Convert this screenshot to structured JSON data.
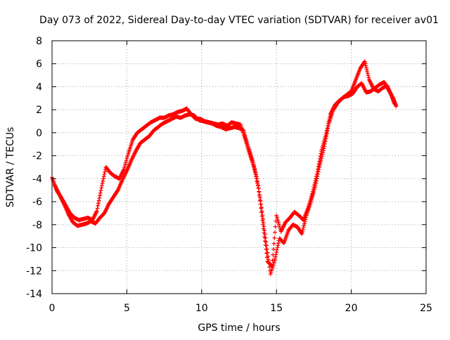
{
  "chart_data": {
    "type": "scatter",
    "title": "Day 073 of 2022, Sidereal Day-to-day VTEC variation (SDTVAR) for receiver av01",
    "xlabel": "GPS time / hours",
    "ylabel": "SDTVAR / TECUs",
    "xlim": [
      0,
      25
    ],
    "ylim": [
      -14,
      8
    ],
    "xticks": [
      "0",
      "5",
      "10",
      "15",
      "20",
      "25"
    ],
    "yticks": [
      "-14",
      "-12",
      "-10",
      "-8",
      "-6",
      "-4",
      "-2",
      "0",
      "2",
      "4",
      "6",
      "8"
    ],
    "grid": true,
    "marker": "+",
    "color": "#ff0000",
    "series": [
      {
        "name": "av01",
        "x": [
          0.0,
          0.3,
          0.6,
          0.9,
          1.2,
          1.5,
          1.8,
          2.1,
          2.4,
          2.7,
          3.0,
          3.3,
          3.6,
          3.9,
          4.2,
          4.5,
          4.8,
          5.1,
          5.4,
          5.7,
          6.0,
          6.3,
          6.6,
          6.9,
          7.2,
          7.5,
          7.8,
          8.1,
          8.4,
          8.7,
          9.0,
          9.3,
          9.6,
          9.9,
          10.2,
          10.5,
          10.8,
          11.1,
          11.4,
          11.7,
          12.0,
          12.3,
          12.6,
          12.9,
          13.2,
          13.5,
          13.8,
          14.1,
          14.4,
          14.7,
          15.0,
          15.3,
          15.6,
          15.9,
          16.2,
          16.5,
          16.8,
          17.1,
          17.4,
          17.7,
          18.0,
          18.3,
          18.6,
          18.9,
          19.2,
          19.5,
          19.8,
          20.1,
          20.4,
          20.7,
          21.0,
          21.3,
          21.6,
          21.9,
          22.2,
          22.5,
          22.8,
          23.0
        ],
        "y": [
          -3.9,
          -5.0,
          -5.6,
          -6.3,
          -7.0,
          -7.4,
          -7.6,
          -7.5,
          -7.4,
          -7.6,
          -6.8,
          -4.8,
          -3.0,
          -3.5,
          -3.8,
          -4.0,
          -3.2,
          -1.8,
          -0.6,
          0.0,
          0.3,
          0.6,
          0.9,
          1.1,
          1.3,
          1.3,
          1.5,
          1.6,
          1.8,
          1.9,
          2.1,
          1.6,
          1.2,
          1.2,
          1.0,
          0.9,
          0.8,
          0.7,
          0.8,
          0.6,
          0.9,
          0.8,
          0.7,
          -0.5,
          -1.8,
          -3.0,
          -4.8,
          -8.0,
          -11.2,
          -11.6,
          -7.2,
          -8.6,
          -7.8,
          -7.4,
          -6.9,
          -7.2,
          -7.6,
          -6.6,
          -5.3,
          -3.6,
          -1.6,
          -0.2,
          1.6,
          2.4,
          2.8,
          3.1,
          3.2,
          3.4,
          4.0,
          4.3,
          3.5,
          3.6,
          3.9,
          4.2,
          4.4,
          3.7,
          3.0,
          2.3
        ],
        "x2": [
          0.2,
          0.5,
          0.8,
          1.1,
          1.4,
          1.7,
          2.0,
          2.3,
          2.6,
          2.9,
          3.2,
          3.5,
          3.8,
          4.1,
          4.4,
          4.7,
          5.0,
          5.3,
          5.6,
          5.9,
          6.2,
          6.5,
          6.8,
          7.1,
          7.4,
          7.7,
          8.0,
          8.3,
          8.6,
          8.9,
          9.2,
          9.5,
          9.8,
          10.1,
          10.4,
          10.7,
          11.0,
          11.3,
          11.6,
          11.9,
          12.2,
          12.5,
          12.8,
          13.1,
          13.4,
          13.7,
          14.0,
          14.3,
          14.6,
          14.9,
          15.2,
          15.5,
          15.8,
          16.1,
          16.4,
          16.7,
          17.0,
          17.3,
          17.6,
          17.9,
          18.2,
          18.5,
          18.8,
          19.1,
          19.4,
          19.7,
          20.0,
          20.3,
          20.6,
          20.9,
          21.2,
          21.5,
          21.8,
          22.1,
          22.4,
          22.7,
          22.9
        ],
        "y2": [
          -4.6,
          -5.4,
          -6.2,
          -7.1,
          -7.8,
          -8.1,
          -8.0,
          -7.9,
          -7.7,
          -7.9,
          -7.4,
          -7.0,
          -6.2,
          -5.6,
          -5.0,
          -4.1,
          -3.3,
          -2.4,
          -1.6,
          -0.9,
          -0.6,
          -0.3,
          0.2,
          0.5,
          0.8,
          1.0,
          1.2,
          1.4,
          1.3,
          1.5,
          1.6,
          1.5,
          1.1,
          1.0,
          0.9,
          0.8,
          0.6,
          0.5,
          0.3,
          0.4,
          0.5,
          0.4,
          0.2,
          -1.2,
          -2.4,
          -4.0,
          -6.5,
          -9.5,
          -12.3,
          -11.0,
          -9.2,
          -9.6,
          -8.5,
          -8.0,
          -8.2,
          -8.8,
          -7.2,
          -6.0,
          -4.6,
          -2.8,
          -1.2,
          0.8,
          2.0,
          2.6,
          3.0,
          3.3,
          3.6,
          4.6,
          5.6,
          6.2,
          4.6,
          3.8,
          3.6,
          3.9,
          4.1,
          3.2,
          2.5
        ]
      }
    ],
    "annotations": []
  }
}
